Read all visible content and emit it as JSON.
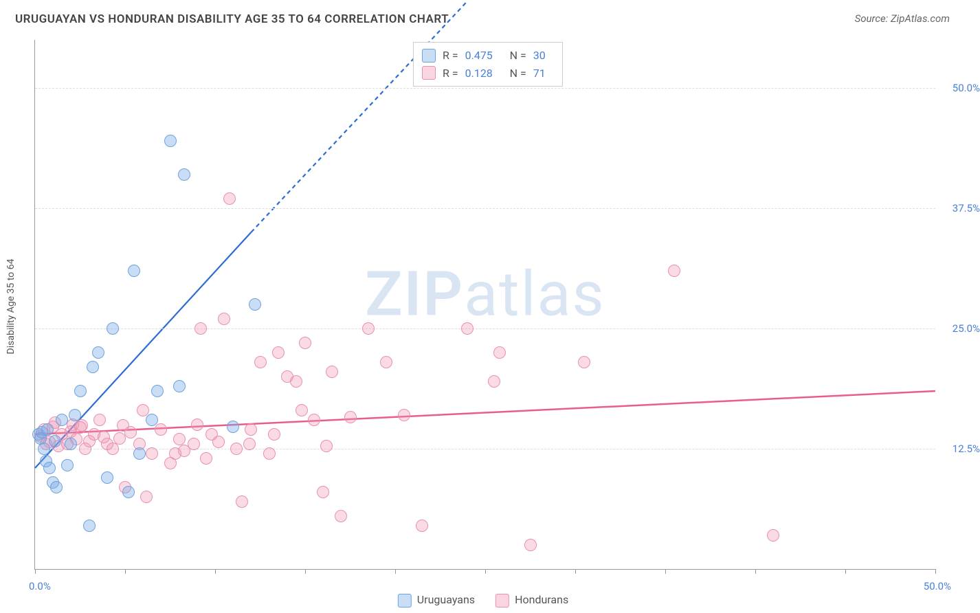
{
  "title": "URUGUAYAN VS HONDURAN DISABILITY AGE 35 TO 64 CORRELATION CHART",
  "source_label": "Source: ",
  "source_name": "ZipAtlas.com",
  "watermark_zip": "ZIP",
  "watermark_atlas": "atlas",
  "y_axis_title": "Disability Age 35 to 64",
  "x_axis": {
    "min": 0,
    "max": 50,
    "label_min": "0.0%",
    "label_max": "50.0%",
    "label_min_color": "#4a7fd6",
    "label_max_color": "#4a7fd6",
    "ticks": [
      0,
      5,
      10,
      15,
      20,
      25,
      30,
      35,
      40,
      45,
      50
    ]
  },
  "y_axis": {
    "min": 0,
    "max": 55,
    "gridlines": [
      {
        "value": 12.5,
        "label": "12.5%"
      },
      {
        "value": 25.0,
        "label": "25.0%"
      },
      {
        "value": 37.5,
        "label": "37.5%"
      },
      {
        "value": 50.0,
        "label": "50.0%"
      }
    ]
  },
  "series": {
    "uruguayans": {
      "label": "Uruguayans",
      "r_value": "0.475",
      "n_value": "30",
      "fill_color": "rgba(120, 170, 230, 0.4)",
      "stroke_color": "#6da2e0",
      "legend_fill": "rgba(120, 170, 230, 0.4)",
      "legend_stroke": "#6da2e0",
      "marker_radius": 8,
      "trend": {
        "color": "#2b6cd4",
        "width": 2.2,
        "x1": 0,
        "y1": 10.5,
        "x2": 12.0,
        "y2": 35.0,
        "dash_after_x": 12.0,
        "x3": 24.0,
        "y3": 59.0
      },
      "points": [
        {
          "x": 0.2,
          "y": 14.0
        },
        {
          "x": 0.3,
          "y": 13.6
        },
        {
          "x": 0.4,
          "y": 14.2
        },
        {
          "x": 0.5,
          "y": 12.5
        },
        {
          "x": 0.6,
          "y": 11.2
        },
        {
          "x": 0.8,
          "y": 10.5
        },
        {
          "x": 1.0,
          "y": 9.0
        },
        {
          "x": 1.2,
          "y": 8.5
        },
        {
          "x": 2.0,
          "y": 13.0
        },
        {
          "x": 1.5,
          "y": 15.5
        },
        {
          "x": 2.2,
          "y": 16.0
        },
        {
          "x": 2.5,
          "y": 18.5
        },
        {
          "x": 3.0,
          "y": 4.5
        },
        {
          "x": 3.2,
          "y": 21.0
        },
        {
          "x": 3.5,
          "y": 22.5
        },
        {
          "x": 4.0,
          "y": 9.5
        },
        {
          "x": 4.3,
          "y": 25.0
        },
        {
          "x": 5.2,
          "y": 8.0
        },
        {
          "x": 5.5,
          "y": 31.0
        },
        {
          "x": 5.8,
          "y": 12.0
        },
        {
          "x": 6.5,
          "y": 15.5
        },
        {
          "x": 6.8,
          "y": 18.5
        },
        {
          "x": 7.5,
          "y": 44.5
        },
        {
          "x": 8.0,
          "y": 19.0
        },
        {
          "x": 8.3,
          "y": 41.0
        },
        {
          "x": 11.0,
          "y": 14.8
        },
        {
          "x": 12.2,
          "y": 27.5
        },
        {
          "x": 0.7,
          "y": 14.5
        },
        {
          "x": 1.1,
          "y": 13.3
        },
        {
          "x": 1.8,
          "y": 10.8
        }
      ]
    },
    "hondurans": {
      "label": "Hondurans",
      "r_value": "0.128",
      "n_value": "71",
      "fill_color": "rgba(240, 150, 180, 0.35)",
      "stroke_color": "#e890b0",
      "legend_fill": "rgba(240, 150, 180, 0.4)",
      "legend_stroke": "#e890b0",
      "marker_radius": 8,
      "trend": {
        "color": "#e85d8c",
        "width": 2.5,
        "x1": 0,
        "y1": 14.0,
        "x2": 50.0,
        "y2": 18.5
      },
      "points": [
        {
          "x": 0.3,
          "y": 13.8
        },
        {
          "x": 0.5,
          "y": 14.5
        },
        {
          "x": 0.8,
          "y": 13.2
        },
        {
          "x": 1.0,
          "y": 14.8
        },
        {
          "x": 1.3,
          "y": 12.8
        },
        {
          "x": 1.5,
          "y": 14.0
        },
        {
          "x": 1.8,
          "y": 13.0
        },
        {
          "x": 2.0,
          "y": 14.3
        },
        {
          "x": 2.3,
          "y": 13.5
        },
        {
          "x": 2.5,
          "y": 14.7
        },
        {
          "x": 2.8,
          "y": 12.5
        },
        {
          "x": 3.0,
          "y": 13.3
        },
        {
          "x": 3.3,
          "y": 14.0
        },
        {
          "x": 3.6,
          "y": 15.5
        },
        {
          "x": 4.0,
          "y": 13.0
        },
        {
          "x": 4.3,
          "y": 12.5
        },
        {
          "x": 4.7,
          "y": 13.6
        },
        {
          "x": 5.0,
          "y": 8.5
        },
        {
          "x": 5.3,
          "y": 14.2
        },
        {
          "x": 5.8,
          "y": 13.0
        },
        {
          "x": 6.2,
          "y": 7.5
        },
        {
          "x": 6.5,
          "y": 12.0
        },
        {
          "x": 7.0,
          "y": 14.5
        },
        {
          "x": 7.5,
          "y": 11.0
        },
        {
          "x": 8.0,
          "y": 13.5
        },
        {
          "x": 8.3,
          "y": 12.3
        },
        {
          "x": 8.8,
          "y": 13.0
        },
        {
          "x": 9.2,
          "y": 25.0
        },
        {
          "x": 9.5,
          "y": 11.5
        },
        {
          "x": 9.8,
          "y": 14.0
        },
        {
          "x": 10.2,
          "y": 13.2
        },
        {
          "x": 10.5,
          "y": 26.0
        },
        {
          "x": 10.8,
          "y": 38.5
        },
        {
          "x": 11.2,
          "y": 12.5
        },
        {
          "x": 11.5,
          "y": 7.0
        },
        {
          "x": 12.0,
          "y": 14.5
        },
        {
          "x": 12.5,
          "y": 21.5
        },
        {
          "x": 13.0,
          "y": 12.0
        },
        {
          "x": 13.5,
          "y": 22.5
        },
        {
          "x": 14.0,
          "y": 20.0
        },
        {
          "x": 14.5,
          "y": 19.5
        },
        {
          "x": 15.0,
          "y": 23.5
        },
        {
          "x": 15.5,
          "y": 15.5
        },
        {
          "x": 16.0,
          "y": 8.0
        },
        {
          "x": 16.5,
          "y": 20.5
        },
        {
          "x": 17.0,
          "y": 5.5
        },
        {
          "x": 17.5,
          "y": 15.8
        },
        {
          "x": 16.2,
          "y": 12.8
        },
        {
          "x": 18.5,
          "y": 25.0
        },
        {
          "x": 19.5,
          "y": 21.5
        },
        {
          "x": 20.5,
          "y": 16.0
        },
        {
          "x": 21.5,
          "y": 4.5
        },
        {
          "x": 24.0,
          "y": 25.0
        },
        {
          "x": 25.5,
          "y": 19.5
        },
        {
          "x": 25.8,
          "y": 22.5
        },
        {
          "x": 27.5,
          "y": 2.5
        },
        {
          "x": 30.5,
          "y": 21.5
        },
        {
          "x": 35.5,
          "y": 31.0
        },
        {
          "x": 41.0,
          "y": 3.5
        },
        {
          "x": 2.1,
          "y": 15.0
        },
        {
          "x": 3.8,
          "y": 13.7
        },
        {
          "x": 4.9,
          "y": 14.9
        },
        {
          "x": 6.0,
          "y": 16.5
        },
        {
          "x": 7.8,
          "y": 12.0
        },
        {
          "x": 9.0,
          "y": 15.0
        },
        {
          "x": 11.9,
          "y": 13.0
        },
        {
          "x": 13.3,
          "y": 14.0
        },
        {
          "x": 14.8,
          "y": 16.5
        },
        {
          "x": 1.1,
          "y": 15.2
        },
        {
          "x": 0.6,
          "y": 13.0
        },
        {
          "x": 2.6,
          "y": 14.9
        }
      ]
    }
  },
  "legend_top": {
    "r_label": "R =",
    "n_label": "N ="
  }
}
